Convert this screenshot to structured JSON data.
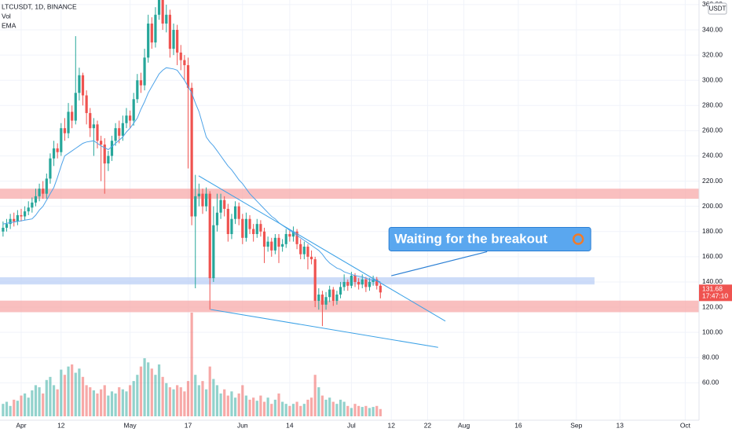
{
  "chart_data": {
    "type": "candlestick",
    "title": "LTCUSDT, 1D, BINANCE",
    "indicators": [
      "Vol",
      "EMA"
    ],
    "currency": "USDT",
    "countdown": "17:47:10",
    "annotation": {
      "text": "Waiting for the breakout",
      "x": [
        102,
        128.4
      ],
      "y": [
        144.9,
        164
      ],
      "color": "#5aa7ef"
    },
    "x": [
      -5,
      -4,
      -3,
      -2,
      -1,
      0,
      1,
      2,
      3,
      4,
      5,
      6,
      7,
      8,
      9,
      10,
      11,
      12,
      13,
      14,
      15,
      16,
      17,
      18,
      19,
      20,
      21,
      22,
      23,
      24,
      25,
      26,
      27,
      28,
      29,
      30,
      31,
      32,
      33,
      34,
      35,
      36,
      37,
      38,
      39,
      40,
      41,
      42,
      43,
      44,
      45,
      46,
      47,
      48,
      49,
      50,
      51,
      52,
      53,
      54,
      55,
      56,
      57,
      58,
      59,
      60,
      61,
      62,
      63,
      64,
      65,
      66,
      67,
      68,
      69,
      70,
      71,
      72,
      73,
      74,
      75,
      76,
      77,
      78,
      79,
      80,
      81,
      82,
      83,
      84,
      85,
      86,
      87,
      88,
      89,
      90,
      91,
      92,
      93,
      94,
      95,
      96,
      97,
      98,
      99
    ],
    "open": [
      180,
      183,
      186,
      190,
      188,
      193,
      192,
      196,
      199,
      203,
      208,
      214,
      210,
      222,
      238,
      246,
      243,
      262,
      258,
      275,
      268,
      290,
      304,
      288,
      274,
      262,
      265,
      252,
      249,
      234,
      240,
      252,
      262,
      256,
      266,
      272,
      268,
      285,
      300,
      296,
      318,
      345,
      330,
      352,
      368,
      345,
      352,
      325,
      340,
      322,
      316,
      312,
      294,
      192,
      208,
      210,
      200,
      210,
      143,
      185,
      195,
      205,
      198,
      178,
      190,
      200,
      190,
      175,
      190,
      182,
      178,
      186,
      180,
      168,
      172,
      165,
      175,
      168,
      170,
      178,
      176,
      180,
      170,
      162,
      168,
      160,
      158,
      125,
      130,
      122,
      128,
      134,
      125,
      130,
      136,
      140,
      137,
      145,
      140,
      138,
      142,
      136,
      140,
      142,
      137
    ],
    "high": [
      188,
      190,
      194,
      195,
      197,
      198,
      200,
      204,
      207,
      214,
      218,
      220,
      226,
      242,
      252,
      250,
      266,
      270,
      282,
      280,
      335,
      310,
      306,
      292,
      278,
      270,
      268,
      256,
      254,
      244,
      256,
      266,
      268,
      272,
      278,
      276,
      290,
      305,
      306,
      325,
      352,
      350,
      358,
      375,
      372,
      360,
      356,
      345,
      344,
      328,
      320,
      318,
      298,
      225,
      218,
      214,
      215,
      212,
      200,
      210,
      210,
      208,
      202,
      194,
      204,
      203,
      194,
      195,
      193,
      186,
      190,
      189,
      183,
      176,
      175,
      178,
      178,
      174,
      182,
      181,
      184,
      182,
      174,
      172,
      170,
      165,
      160,
      135,
      133,
      132,
      137,
      136,
      133,
      140,
      146,
      142,
      148,
      147,
      143,
      146,
      144,
      143,
      145,
      144,
      139
    ],
    "low": [
      176,
      180,
      182,
      184,
      185,
      188,
      189,
      193,
      195,
      200,
      204,
      206,
      206,
      218,
      232,
      238,
      240,
      252,
      254,
      262,
      265,
      284,
      280,
      265,
      255,
      240,
      246,
      220,
      210,
      228,
      236,
      248,
      250,
      252,
      262,
      262,
      264,
      282,
      290,
      292,
      314,
      325,
      326,
      348,
      340,
      338,
      318,
      320,
      312,
      308,
      300,
      230,
      185,
      135,
      200,
      194,
      196,
      118,
      140,
      180,
      190,
      192,
      172,
      174,
      186,
      185,
      170,
      172,
      178,
      172,
      175,
      176,
      155,
      164,
      160,
      162,
      155,
      164,
      167,
      172,
      172,
      166,
      158,
      158,
      150,
      154,
      120,
      118,
      105,
      118,
      124,
      121,
      122,
      127,
      133,
      133,
      135,
      136,
      134,
      135,
      132,
      133,
      137,
      134,
      127
    ],
    "close": [
      183,
      186,
      190,
      188,
      193,
      192,
      196,
      199,
      203,
      208,
      214,
      210,
      222,
      238,
      246,
      243,
      262,
      258,
      275,
      268,
      290,
      304,
      288,
      274,
      262,
      265,
      252,
      249,
      234,
      240,
      252,
      262,
      256,
      266,
      272,
      268,
      285,
      300,
      296,
      318,
      345,
      330,
      352,
      368,
      345,
      352,
      325,
      340,
      322,
      316,
      312,
      294,
      192,
      208,
      210,
      200,
      210,
      143,
      185,
      195,
      205,
      198,
      178,
      190,
      200,
      190,
      175,
      190,
      182,
      178,
      186,
      180,
      168,
      172,
      165,
      175,
      168,
      170,
      178,
      176,
      180,
      170,
      162,
      168,
      160,
      158,
      125,
      130,
      122,
      128,
      134,
      125,
      130,
      136,
      140,
      137,
      145,
      140,
      138,
      142,
      136,
      140,
      142,
      137,
      131.68
    ],
    "volume": [
      12,
      14,
      10,
      16,
      15,
      20,
      22,
      18,
      25,
      30,
      28,
      22,
      35,
      38,
      30,
      26,
      45,
      40,
      48,
      50,
      42,
      46,
      38,
      30,
      28,
      25,
      22,
      26,
      30,
      20,
      24,
      22,
      28,
      26,
      24,
      30,
      34,
      40,
      48,
      56,
      52,
      46,
      40,
      50,
      38,
      32,
      28,
      26,
      30,
      28,
      24,
      34,
      100,
      40,
      30,
      34,
      26,
      48,
      36,
      30,
      22,
      26,
      20,
      24,
      18,
      22,
      30,
      20,
      16,
      18,
      15,
      20,
      14,
      18,
      12,
      16,
      22,
      14,
      12,
      10,
      12,
      14,
      10,
      12,
      16,
      18,
      40,
      28,
      20,
      16,
      18,
      14,
      12,
      16,
      14,
      10,
      8,
      12,
      10,
      9,
      10,
      8,
      9,
      10,
      7
    ],
    "ema": [
      186,
      186.5,
      187,
      187.5,
      188,
      188.5,
      189,
      189.5,
      190,
      193,
      197,
      200,
      205,
      210,
      215,
      223,
      232,
      240,
      242,
      244,
      246,
      248,
      250,
      251,
      251.5,
      252,
      250,
      248,
      246.5,
      245,
      247.5,
      250,
      252.5,
      255,
      259,
      262,
      266,
      270,
      277,
      283,
      290,
      295,
      300,
      305,
      308,
      310,
      309.5,
      309,
      308,
      304,
      300,
      295,
      290,
      282,
      275,
      265,
      255,
      251,
      248,
      244,
      240,
      236,
      232,
      229,
      225,
      221,
      218,
      214,
      210,
      207,
      204,
      201,
      198,
      195,
      192,
      190,
      187,
      185,
      183,
      181,
      179,
      177,
      175,
      173,
      171,
      169,
      167,
      165,
      162,
      158,
      155,
      153,
      151,
      150,
      148,
      147,
      146,
      145,
      144.5,
      144,
      143,
      142,
      141.5,
      141,
      140
    ],
    "up_color": "#26a69a",
    "down_color": "#ef5350",
    "ema_color": "#4ea3e8",
    "zones": [
      {
        "low": 206,
        "high": 214,
        "color": "#f7a9a9"
      },
      {
        "low": 138,
        "high": 143.7,
        "color": "#bcd0f5",
        "x_end": 158
      },
      {
        "low": 116,
        "high": 125.2,
        "color": "#f7a9a9"
      }
    ],
    "trendlines": [
      {
        "x": [
          48.9,
          116.9
        ],
        "y": [
          224.2,
          108.95
        ],
        "color": "#3ba1e6"
      },
      {
        "x": [
          52.2,
          114.9
        ],
        "y": [
          118.2,
          88.1
        ],
        "color": "#3ba1e6"
      }
    ],
    "xlim": [
      -5.84,
      186.8
    ],
    "ylim": [
      30.3,
      363.7
    ],
    "xticks": [
      {
        "value": 0,
        "label": "Apr"
      },
      {
        "value": 11,
        "label": "12"
      },
      {
        "value": 30,
        "label": "May"
      },
      {
        "value": 46,
        "label": "17"
      },
      {
        "value": 61,
        "label": "Jun"
      },
      {
        "value": 74,
        "label": "14"
      },
      {
        "value": 91,
        "label": "Jul"
      },
      {
        "value": 102,
        "label": "12"
      },
      {
        "value": 112,
        "label": "22"
      },
      {
        "value": 122,
        "label": "Aug"
      },
      {
        "value": 137,
        "label": "16"
      },
      {
        "value": 153,
        "label": "Sep"
      },
      {
        "value": 165,
        "label": "13"
      },
      {
        "value": 183,
        "label": "Oct"
      }
    ],
    "yticks": [
      {
        "value": 60,
        "label": "60.00"
      },
      {
        "value": 80,
        "label": "80.00"
      },
      {
        "value": 100,
        "label": "100.00"
      },
      {
        "value": 120,
        "label": "120.00"
      },
      {
        "value": 140,
        "label": "140.00"
      },
      {
        "value": 160,
        "label": "160.00"
      },
      {
        "value": 180,
        "label": "180.00"
      },
      {
        "value": 200,
        "label": "200.00"
      },
      {
        "value": 220,
        "label": "220.00"
      },
      {
        "value": 240,
        "label": "240.00"
      },
      {
        "value": 260,
        "label": "260.00"
      },
      {
        "value": 280,
        "label": "280.00"
      },
      {
        "value": 300,
        "label": "300.00"
      },
      {
        "value": 320,
        "label": "320.00"
      },
      {
        "value": 340,
        "label": "340.00"
      },
      {
        "value": 360,
        "label": "360.00"
      }
    ],
    "grid": true
  }
}
